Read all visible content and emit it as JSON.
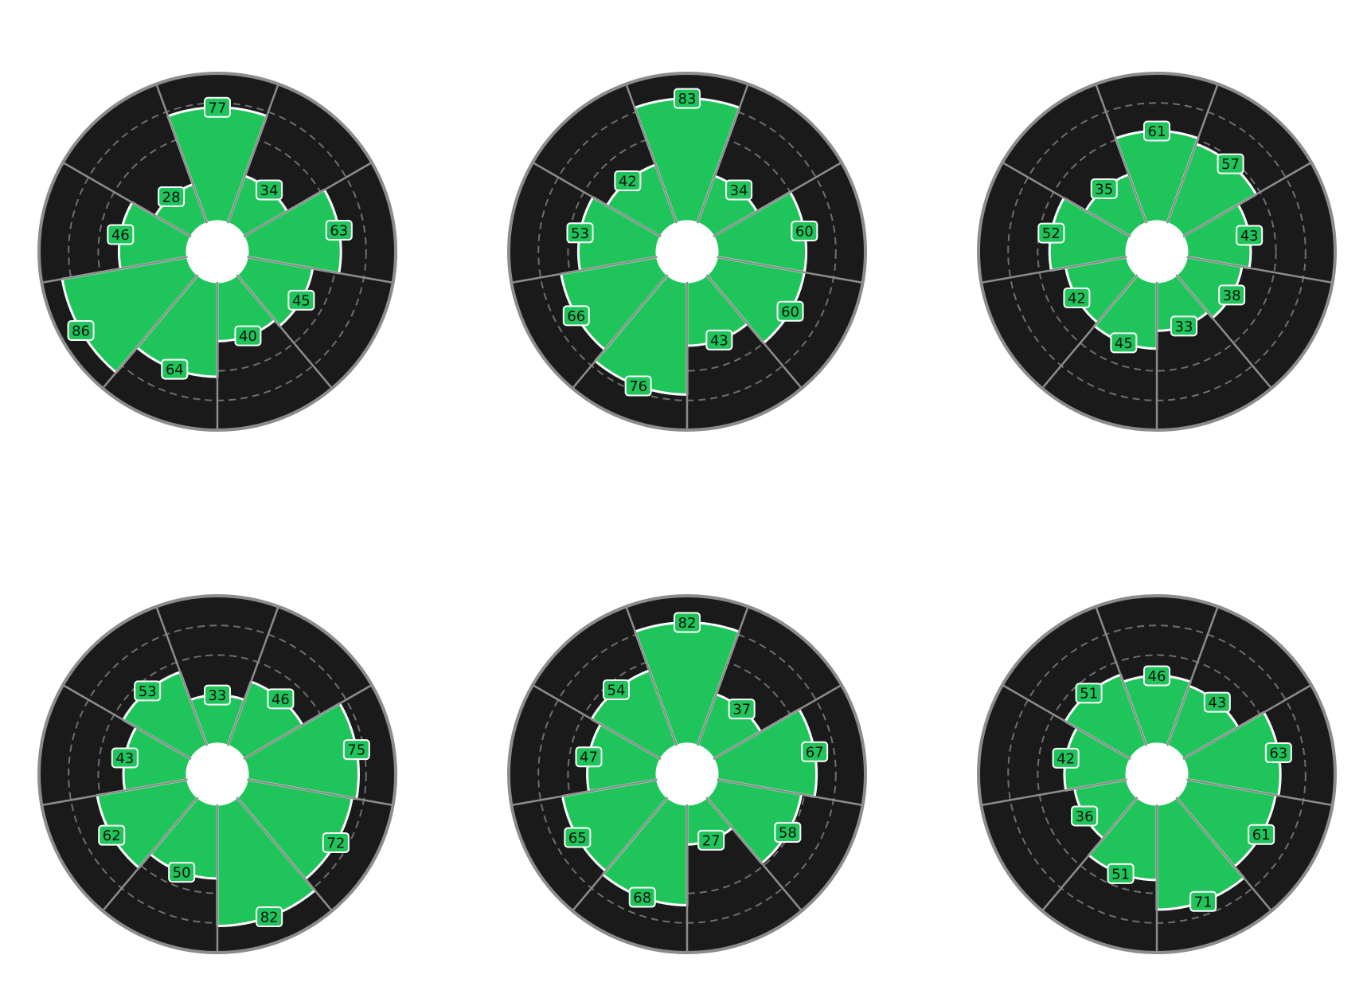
{
  "style": {
    "background": "#1a1a1a",
    "bar_color": "#1fc55b",
    "bar_edge": "#ffffff",
    "outer_ring": "#8c8c8c",
    "grid_color": "#6e6e6e",
    "label_bg": "#1fc55b",
    "label_border": "#ffffff"
  },
  "chart_data": [
    {
      "type": "polar-bar",
      "values": [
        77,
        34,
        63,
        45,
        40,
        64,
        86,
        46,
        28
      ],
      "rmax": 100,
      "grid": [
        60,
        80
      ],
      "grid_style": "dashed"
    },
    {
      "type": "polar-bar",
      "values": [
        83,
        34,
        60,
        60,
        43,
        76,
        66,
        53,
        42
      ],
      "rmax": 100,
      "grid": [
        60,
        80
      ],
      "grid_style": "dashed"
    },
    {
      "type": "polar-bar",
      "values": [
        61,
        57,
        43,
        38,
        33,
        45,
        42,
        52,
        35
      ],
      "rmax": 100,
      "grid": [
        60,
        80
      ],
      "grid_style": "dashed"
    },
    {
      "type": "polar-bar",
      "values": [
        33,
        46,
        75,
        72,
        82,
        50,
        62,
        43,
        53
      ],
      "rmax": 100,
      "grid": [
        60,
        80
      ],
      "grid_style": "dashed"
    },
    {
      "type": "polar-bar",
      "values": [
        82,
        37,
        67,
        58,
        27,
        68,
        65,
        47,
        54
      ],
      "rmax": 100,
      "grid": [
        60,
        80
      ],
      "grid_style": "dashed"
    },
    {
      "type": "polar-bar",
      "values": [
        46,
        43,
        63,
        61,
        71,
        51,
        36,
        42,
        51
      ],
      "rmax": 100,
      "grid": [
        60,
        80
      ],
      "grid_style": "dashed"
    }
  ]
}
